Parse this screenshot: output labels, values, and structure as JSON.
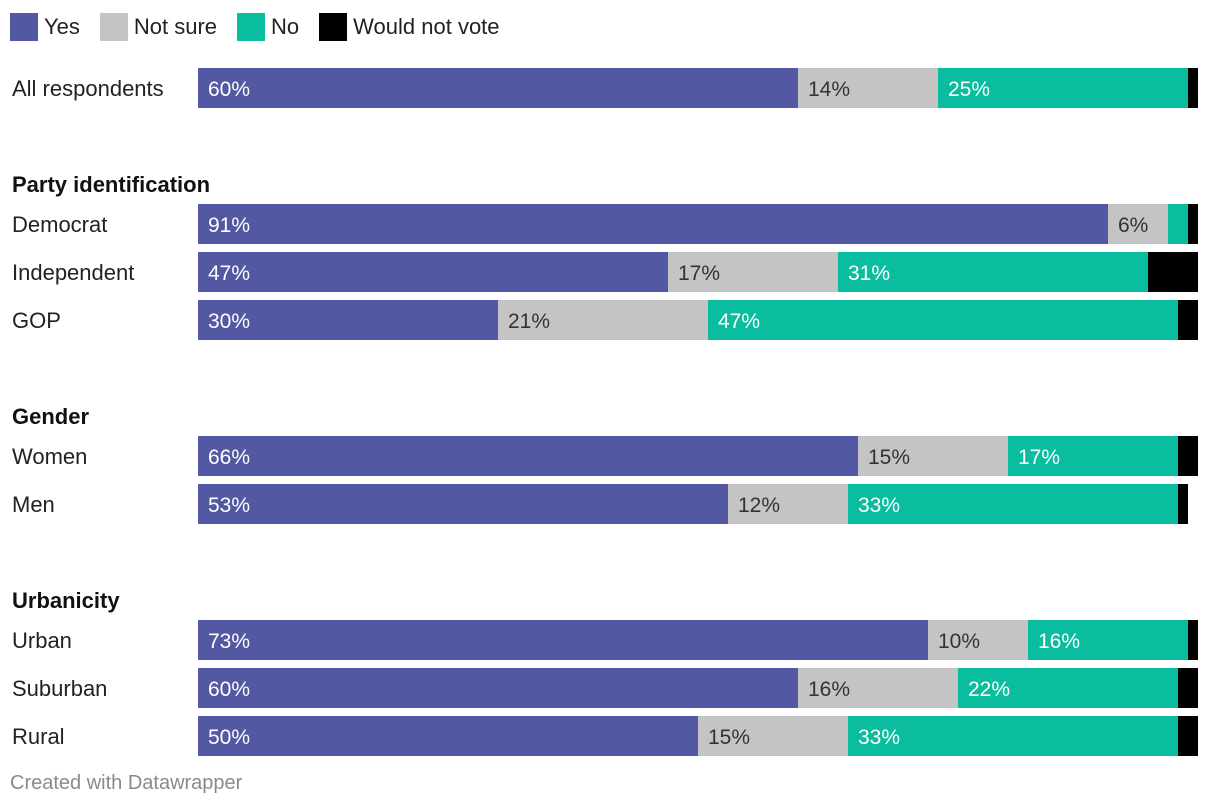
{
  "chart_data": {
    "type": "bar",
    "orientation": "horizontal",
    "stacked": true,
    "legend_position": "top-left",
    "series": [
      {
        "name": "Yes",
        "color": "#5358a3"
      },
      {
        "name": "Not sure",
        "color": "#c4c4c4"
      },
      {
        "name": "No",
        "color": "#0bbd9f"
      },
      {
        "name": "Would not vote",
        "color": "#000000"
      }
    ],
    "groups": [
      {
        "heading": "",
        "rows": [
          {
            "label": "All respondents",
            "values": [
              60,
              14,
              25,
              1
            ],
            "labels": [
              "60%",
              "14%",
              "25%",
              ""
            ]
          }
        ]
      },
      {
        "heading": "Party identification",
        "rows": [
          {
            "label": "Democrat",
            "values": [
              91,
              6,
              2,
              1
            ],
            "labels": [
              "91%",
              "6%",
              "",
              ""
            ]
          },
          {
            "label": "Independent",
            "values": [
              47,
              17,
              31,
              5
            ],
            "labels": [
              "47%",
              "17%",
              "31%",
              ""
            ]
          },
          {
            "label": "GOP",
            "values": [
              30,
              21,
              47,
              2
            ],
            "labels": [
              "30%",
              "21%",
              "47%",
              ""
            ]
          }
        ]
      },
      {
        "heading": "Gender",
        "rows": [
          {
            "label": "Women",
            "values": [
              66,
              15,
              17,
              2
            ],
            "labels": [
              "66%",
              "15%",
              "17%",
              ""
            ]
          },
          {
            "label": "Men",
            "values": [
              53,
              12,
              33,
              1
            ],
            "labels": [
              "53%",
              "12%",
              "33%",
              ""
            ]
          }
        ]
      },
      {
        "heading": "Urbanicity",
        "rows": [
          {
            "label": "Urban",
            "values": [
              73,
              10,
              16,
              1
            ],
            "labels": [
              "73%",
              "10%",
              "16%",
              ""
            ]
          },
          {
            "label": "Suburban",
            "values": [
              60,
              16,
              22,
              2
            ],
            "labels": [
              "60%",
              "16%",
              "22%",
              ""
            ]
          },
          {
            "label": "Rural",
            "values": [
              50,
              15,
              33,
              2
            ],
            "labels": [
              "50%",
              "15%",
              "33%",
              ""
            ]
          }
        ]
      }
    ],
    "x_range": [
      0,
      100
    ]
  },
  "footer": "Created with Datawrapper"
}
